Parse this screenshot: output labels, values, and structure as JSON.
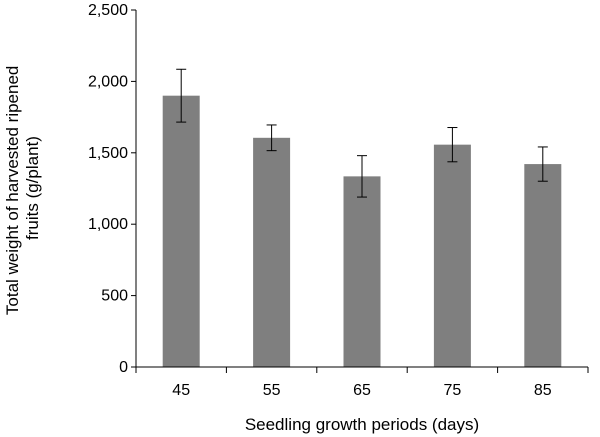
{
  "chart_data": {
    "type": "bar",
    "title": "",
    "xlabel": "Seedling growth periods (days)",
    "ylabel_lines": [
      "Total weight of harvested ripened",
      "fruits (g/plant)"
    ],
    "categories": [
      "45",
      "55",
      "65",
      "75",
      "85"
    ],
    "values": [
      1900,
      1605,
      1335,
      1557,
      1421
    ],
    "error": [
      185,
      90,
      145,
      120,
      120
    ],
    "ylim": [
      0,
      2500
    ],
    "yticks": [
      0,
      500,
      1000,
      1500,
      2000,
      2500
    ],
    "ytick_labels": [
      "0",
      "500",
      "1,000",
      "1,500",
      "2,000",
      "2,500"
    ],
    "grid": false,
    "legend": "none",
    "bar_color": "#7f7f7f",
    "axis_color": "#000000"
  }
}
